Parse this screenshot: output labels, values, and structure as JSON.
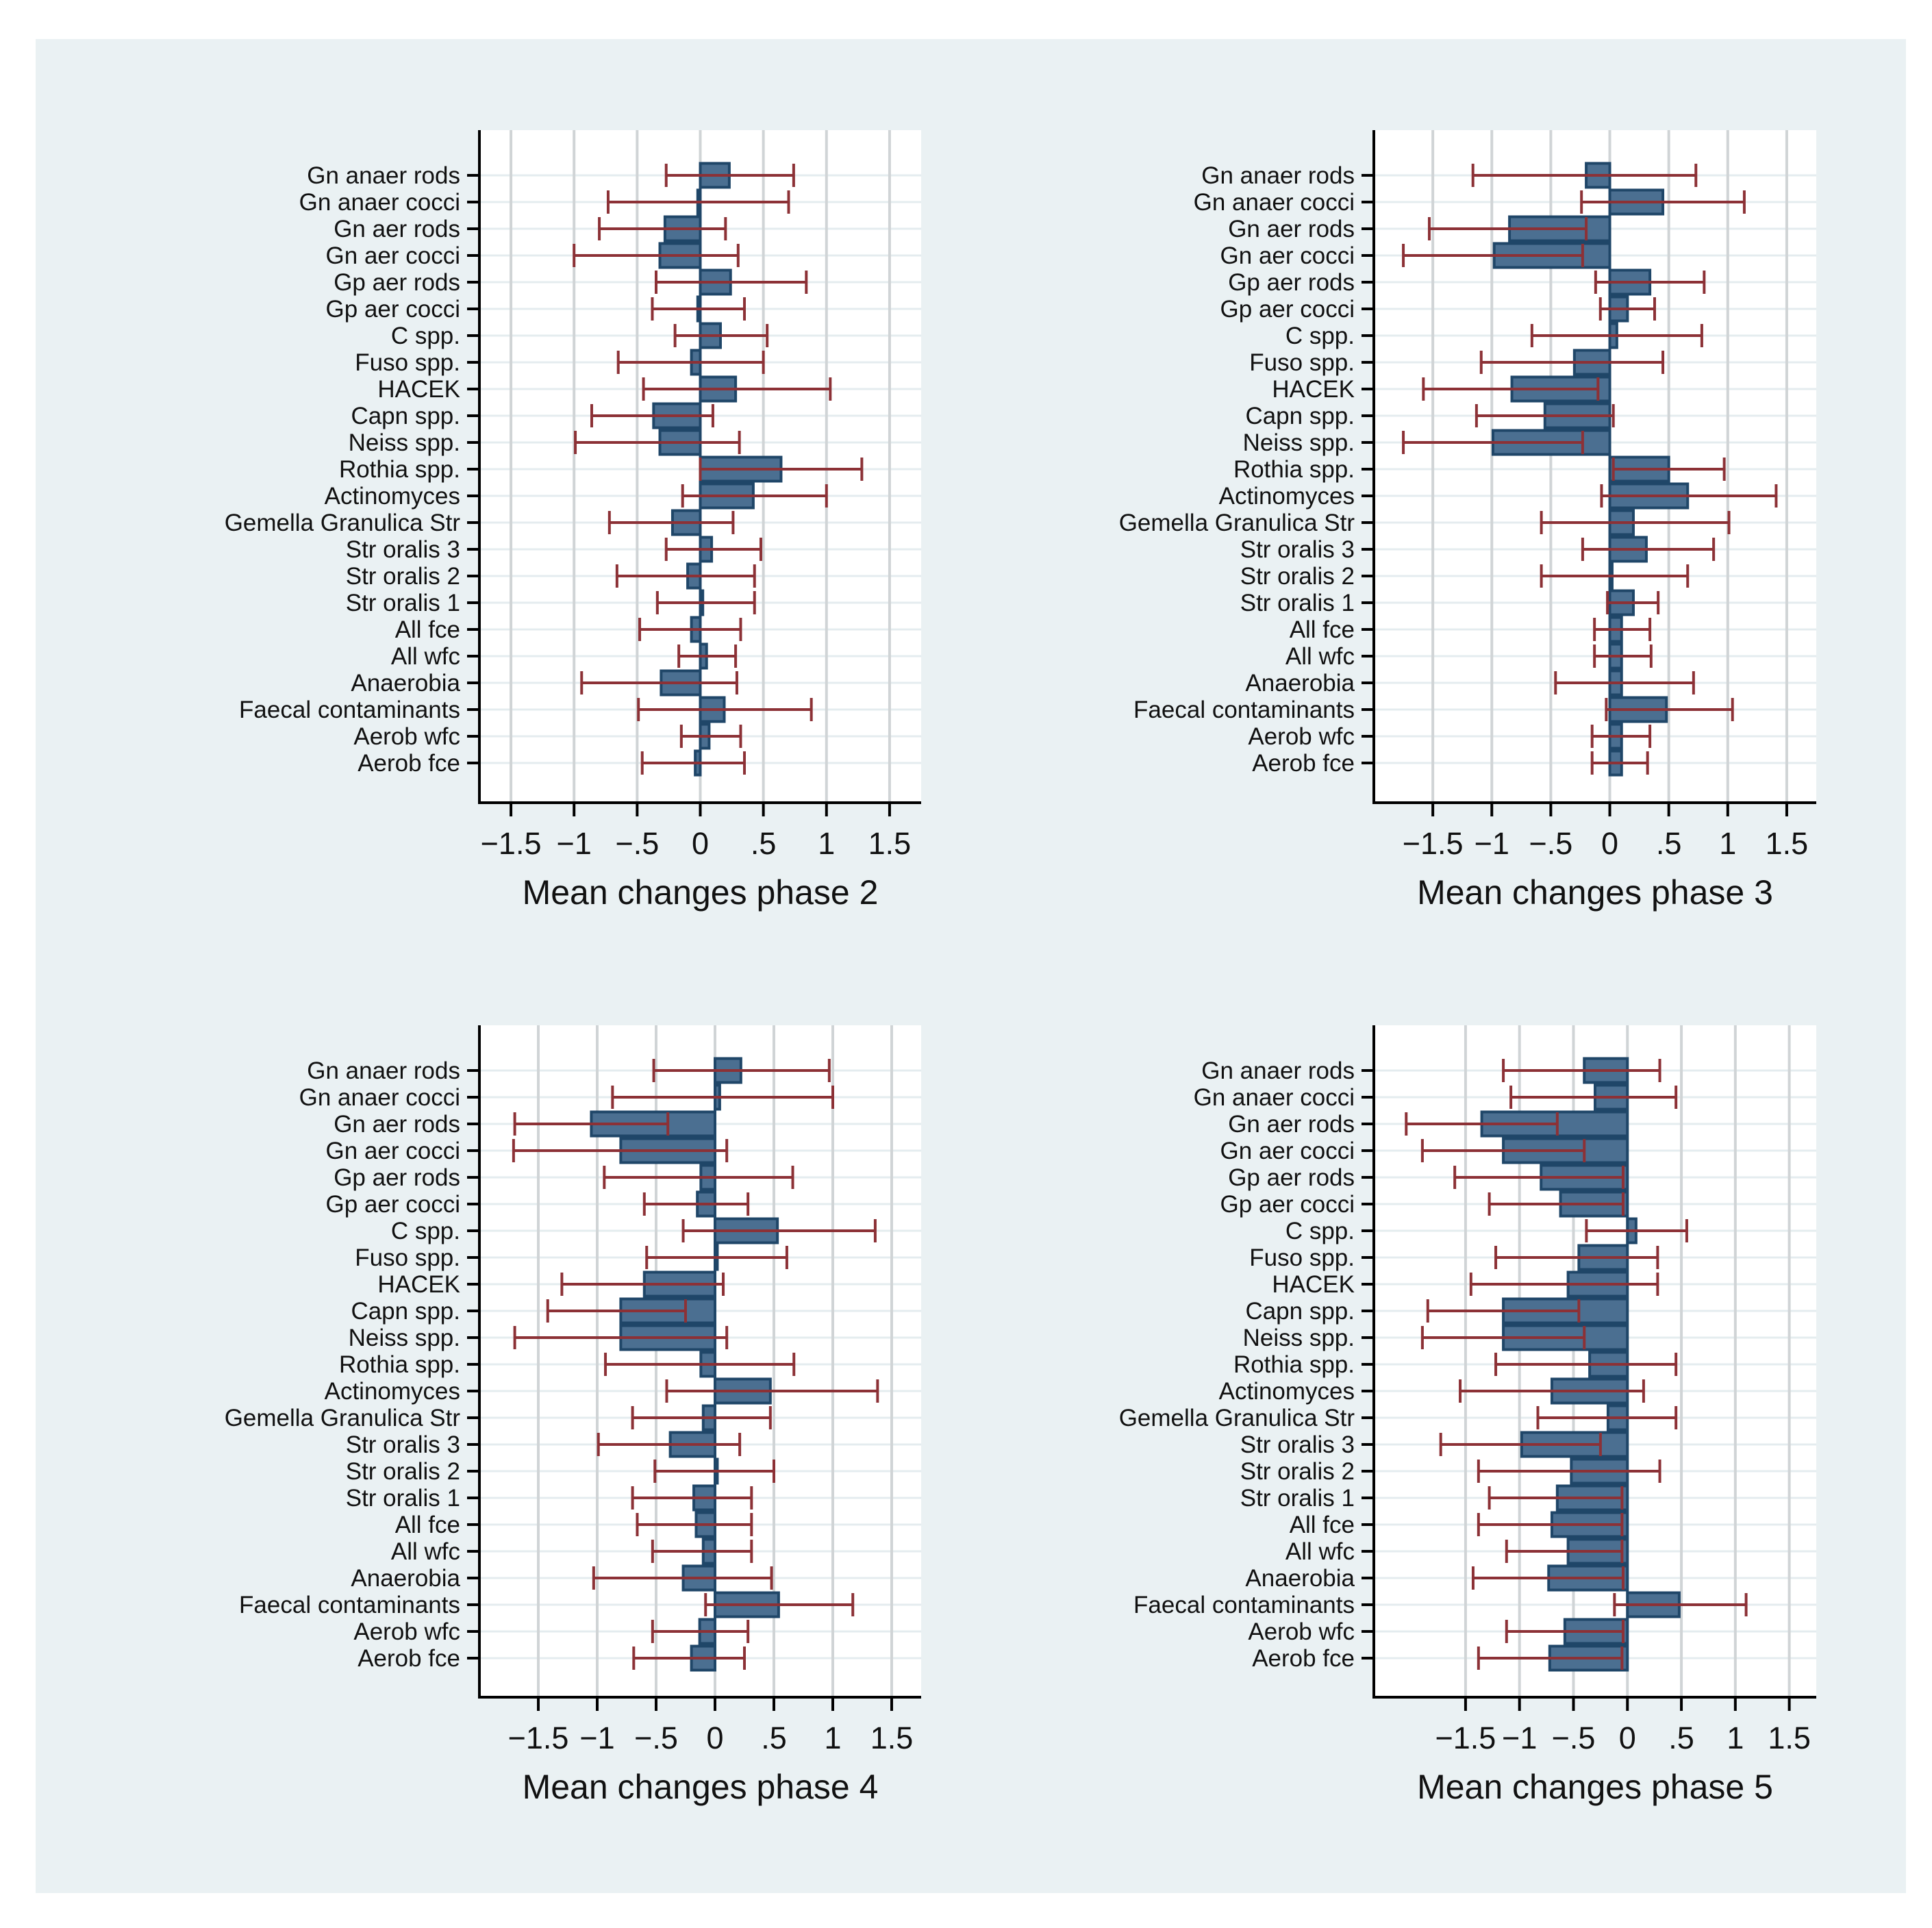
{
  "categories": [
    "Gn anaer rods",
    "Gn anaer cocci",
    "Gn aer rods",
    "Gn aer cocci",
    "Gp aer rods",
    "Gp aer cocci",
    "C spp.",
    "Fuso spp.",
    "HACEK",
    "Capn spp.",
    "Neiss spp.",
    "Rothia spp.",
    "Actinomyces",
    "Gemella Granulica Str",
    "Str oralis 3",
    "Str oralis 2",
    "Str oralis 1",
    "All fce",
    "All wfc",
    "Anaerobia",
    "Faecal contaminants",
    "Aerob wfc",
    "Aerob fce"
  ],
  "colors": {
    "bar_fill": "#4b6f91",
    "bar_edge": "#1f4668",
    "error_bar": "#8c3136",
    "grid": "#d0d4d6",
    "row_grid": "#e4ecef",
    "background": "#eaf1f3",
    "plot_bg": "#ffffff"
  },
  "chart_data": [
    {
      "type": "bar",
      "xlabel": "Mean changes phase 2",
      "xlim": [
        -1.75,
        1.75
      ],
      "xticks": [
        -1.5,
        -1,
        -0.5,
        0,
        0.5,
        1,
        1.5
      ],
      "xtick_labels": [
        "−1.5",
        "−1",
        "−.5",
        "0",
        ".5",
        "1",
        "1.5"
      ],
      "values": [
        0.23,
        -0.02,
        -0.28,
        -0.32,
        0.24,
        -0.02,
        0.16,
        -0.07,
        0.28,
        -0.37,
        -0.32,
        0.64,
        0.42,
        -0.22,
        0.09,
        -0.1,
        0.02,
        -0.07,
        0.05,
        -0.31,
        0.19,
        0.07,
        -0.04
      ],
      "ci_low": [
        -0.27,
        -0.73,
        -0.8,
        -1.0,
        -0.35,
        -0.38,
        -0.2,
        -0.65,
        -0.45,
        -0.86,
        -0.99,
        0.0,
        -0.14,
        -0.72,
        -0.27,
        -0.66,
        -0.34,
        -0.48,
        -0.17,
        -0.94,
        -0.49,
        -0.15,
        -0.46
      ],
      "ci_high": [
        0.74,
        0.7,
        0.2,
        0.3,
        0.84,
        0.35,
        0.53,
        0.5,
        1.03,
        0.1,
        0.31,
        1.28,
        1.0,
        0.26,
        0.48,
        0.43,
        0.43,
        0.32,
        0.28,
        0.29,
        0.88,
        0.32,
        0.35
      ]
    },
    {
      "type": "bar",
      "xlabel": "Mean changes phase 3",
      "xlim": [
        -2.0,
        1.75
      ],
      "xticks": [
        -1.5,
        -1,
        -0.5,
        0,
        0.5,
        1,
        1.5
      ],
      "xtick_labels": [
        "−1.5",
        "−1",
        "−.5",
        "0",
        ".5",
        "1",
        "1.5"
      ],
      "values": [
        -0.2,
        0.45,
        -0.85,
        -0.98,
        0.34,
        0.15,
        0.06,
        -0.3,
        -0.83,
        -0.55,
        -0.99,
        0.5,
        0.66,
        0.2,
        0.31,
        0.02,
        0.2,
        0.1,
        0.1,
        0.1,
        0.48,
        0.1,
        0.1
      ],
      "ci_low": [
        -1.16,
        -0.24,
        -1.53,
        -1.75,
        -0.12,
        -0.08,
        -0.66,
        -1.09,
        -1.58,
        -1.13,
        -1.75,
        0.03,
        -0.07,
        -0.58,
        -0.23,
        -0.58,
        -0.02,
        -0.13,
        -0.13,
        -0.46,
        -0.03,
        -0.15,
        -0.15
      ],
      "ci_high": [
        0.73,
        1.14,
        -0.2,
        -0.23,
        0.8,
        0.38,
        0.78,
        0.45,
        -0.1,
        0.03,
        -0.23,
        0.97,
        1.41,
        1.01,
        0.88,
        0.66,
        0.41,
        0.34,
        0.35,
        0.71,
        1.04,
        0.34,
        0.32
      ]
    },
    {
      "type": "bar",
      "xlabel": "Mean changes phase 4",
      "xlim": [
        -2.0,
        1.75
      ],
      "xticks": [
        -1.5,
        -1,
        -0.5,
        0,
        0.5,
        1,
        1.5
      ],
      "xtick_labels": [
        "−1.5",
        "−1",
        "−.5",
        "0",
        ".5",
        "1",
        "1.5"
      ],
      "values": [
        0.22,
        0.04,
        -1.05,
        -0.8,
        -0.12,
        -0.15,
        0.53,
        0.02,
        -0.6,
        -0.8,
        -0.8,
        -0.12,
        0.47,
        -0.1,
        -0.38,
        0.02,
        -0.18,
        -0.16,
        -0.1,
        -0.27,
        0.54,
        -0.13,
        -0.2
      ],
      "ci_low": [
        -0.52,
        -0.87,
        -1.7,
        -1.71,
        -0.94,
        -0.6,
        -0.27,
        -0.58,
        -1.3,
        -1.42,
        -1.7,
        -0.93,
        -0.41,
        -0.7,
        -0.99,
        -0.51,
        -0.7,
        -0.66,
        -0.53,
        -1.03,
        -0.08,
        -0.53,
        -0.69
      ],
      "ci_high": [
        0.97,
        1.0,
        -0.4,
        0.1,
        0.66,
        0.28,
        1.36,
        0.61,
        0.07,
        -0.25,
        0.1,
        0.67,
        1.38,
        0.47,
        0.21,
        0.5,
        0.31,
        0.31,
        0.31,
        0.48,
        1.17,
        0.28,
        0.25
      ]
    },
    {
      "type": "bar",
      "xlabel": "Mean changes phase 5",
      "xlim": [
        -2.35,
        1.75
      ],
      "xticks": [
        -1.5,
        -1,
        -0.5,
        0,
        0.5,
        1,
        1.5
      ],
      "xtick_labels": [
        "−1.5",
        "−1",
        "−.5",
        "0",
        ".5",
        "1",
        "1.5"
      ],
      "values": [
        -0.4,
        -0.3,
        -1.35,
        -1.15,
        -0.8,
        -0.62,
        0.08,
        -0.45,
        -0.55,
        -1.15,
        -1.15,
        -0.35,
        -0.7,
        -0.18,
        -0.98,
        -0.52,
        -0.65,
        -0.7,
        -0.55,
        -0.73,
        0.48,
        -0.58,
        -0.72
      ],
      "ci_low": [
        -1.15,
        -1.08,
        -2.05,
        -1.9,
        -1.6,
        -1.28,
        -0.38,
        -1.22,
        -1.45,
        -1.85,
        -1.9,
        -1.22,
        -1.55,
        -0.83,
        -1.73,
        -1.38,
        -1.28,
        -1.38,
        -1.12,
        -1.43,
        -0.12,
        -1.12,
        -1.38
      ],
      "ci_high": [
        0.3,
        0.45,
        -0.65,
        -0.4,
        -0.04,
        -0.04,
        0.55,
        0.28,
        0.28,
        -0.45,
        -0.4,
        0.45,
        0.15,
        0.45,
        -0.25,
        0.3,
        -0.05,
        -0.05,
        -0.05,
        -0.04,
        1.1,
        -0.04,
        -0.05
      ]
    }
  ]
}
